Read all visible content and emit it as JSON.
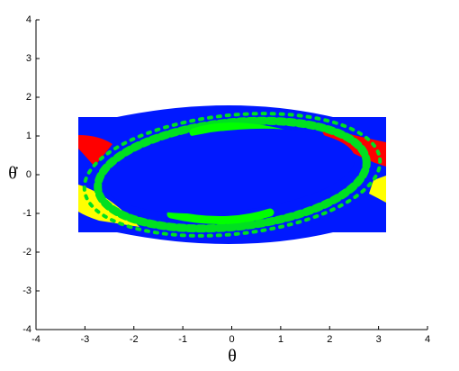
{
  "chart_data": {
    "type": "basin",
    "xlabel": "θ",
    "ylabel": "θ̇",
    "xlim": [
      -4,
      4
    ],
    "ylim": [
      -4,
      4
    ],
    "xticks": [
      -4,
      -3,
      -2,
      -1,
      0,
      1,
      2,
      3,
      4
    ],
    "yticks": [
      -4,
      -3,
      -2,
      -1,
      0,
      1,
      2,
      3,
      4
    ]
  }
}
